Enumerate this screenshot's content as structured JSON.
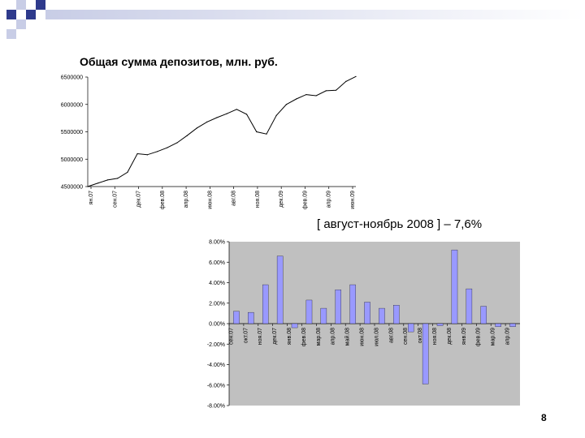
{
  "slide": {
    "caption": "[ август-ноябрь 2008 ]  – 7,6%",
    "page_number": "8",
    "accent_color": "#2e3a8c",
    "decor_color": "#c8cde6"
  },
  "chart_data": [
    {
      "type": "line",
      "title": "Общая сумма депозитов, млн. руб.",
      "ylim": [
        4500000,
        6500000
      ],
      "yticks": [
        4500000,
        5000000,
        5500000,
        6000000,
        6500000
      ],
      "ytick_labels": [
        "4500000",
        "5000000",
        "5500000",
        "6000000",
        "6500000"
      ],
      "xtick_labels": [
        "ян.07",
        "сен.07",
        "дек.07",
        "фев.08",
        "апр.08",
        "июн.08",
        "авг.08",
        "ноя.08",
        "дек.09",
        "фев.09",
        "апр.09",
        "июн.09"
      ],
      "grid": false,
      "color": "#000000",
      "series": [
        {
          "values": [
            4500000,
            4560000,
            4620000,
            4650000,
            4760000,
            5100000,
            5080000,
            5140000,
            5210000,
            5300000,
            5430000,
            5570000,
            5680000,
            5760000,
            5830000,
            5910000,
            5820000,
            5500000,
            5460000,
            5800000,
            6000000,
            6100000,
            6180000,
            6160000,
            6250000,
            6260000,
            6420000,
            6510000
          ]
        }
      ]
    },
    {
      "type": "bar",
      "ylim": [
        -8,
        8
      ],
      "yticks": [
        -8,
        -6,
        -4,
        -2,
        0,
        2,
        4,
        6,
        8
      ],
      "ytick_labels": [
        "-8.00%",
        "-6.00%",
        "-4.00%",
        "-2.00%",
        "0.00%",
        "2.00%",
        "4.00%",
        "6.00%",
        "8.00%"
      ],
      "categories": [
        "сен.07",
        "окт.07",
        "ноя.07",
        "дек.07",
        "янв.08",
        "фев.08",
        "мар.08",
        "апр.08",
        "май.08",
        "июн.08",
        "июл.08",
        "авг.08",
        "сен.08",
        "окт.08",
        "ноя.08",
        "дек.08",
        "янв.09",
        "фев.09",
        "мар.09",
        "апр.09"
      ],
      "values": [
        1.2,
        1.1,
        3.8,
        6.6,
        -0.4,
        2.3,
        1.5,
        3.3,
        3.8,
        2.1,
        1.5,
        1.8,
        -0.8,
        -5.9,
        -0.2,
        7.2,
        3.4,
        1.7,
        -0.3,
        -0.3
      ],
      "bar_color": "#9999ff",
      "background": "#c0c0c0",
      "grid": false
    }
  ]
}
